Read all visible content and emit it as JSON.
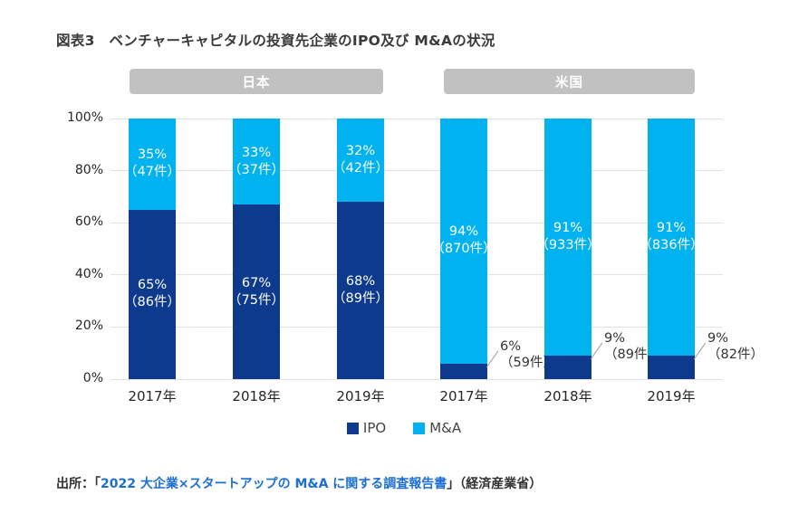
{
  "title": "図表3　ベンチャーキャピタルの投資先企業のIPO及び M&Aの状況",
  "groups": [
    {
      "label": "日本"
    },
    {
      "label": "米国"
    }
  ],
  "chart_data": {
    "type": "bar",
    "stacked": true,
    "categories": [
      "2017年",
      "2018年",
      "2019年",
      "2017年",
      "2018年",
      "2019年"
    ],
    "category_groups": [
      "日本",
      "日本",
      "日本",
      "米国",
      "米国",
      "米国"
    ],
    "series": [
      {
        "name": "IPO",
        "color": "#0d3a8d",
        "values": [
          65,
          67,
          68,
          6,
          9,
          9
        ],
        "counts": [
          86,
          75,
          89,
          59,
          89,
          82
        ],
        "labels": [
          [
            "65%",
            "（86件）"
          ],
          [
            "67%",
            "（75件）"
          ],
          [
            "68%",
            "（89件）"
          ],
          [
            "6%",
            "（59件）"
          ],
          [
            "9%",
            "（89件）"
          ],
          [
            "9%",
            "（82件）"
          ]
        ]
      },
      {
        "name": "M&A",
        "color": "#00b2f0",
        "values": [
          35,
          33,
          32,
          94,
          91,
          91
        ],
        "counts": [
          47,
          37,
          42,
          870,
          933,
          836
        ],
        "labels": [
          [
            "35%",
            "（47件）"
          ],
          [
            "33%",
            "（37件）"
          ],
          [
            "32%",
            "（42件）"
          ],
          [
            "94%",
            "（870件）"
          ],
          [
            "91%",
            "（933件）"
          ],
          [
            "91%",
            "（836件）"
          ]
        ]
      }
    ],
    "ylim": [
      0,
      100
    ],
    "yticks": [
      "0%",
      "20%",
      "40%",
      "60%",
      "80%",
      "100%"
    ],
    "grid": true,
    "legend": [
      "IPO",
      "M&A"
    ],
    "legend_position": "bottom",
    "colors": {
      "ipo": "#0d3a8d",
      "mna": "#00b2f0",
      "group_header_bg": "#c1c1c1",
      "gridline": "#e3e3e3",
      "label_inside": "#ffffff",
      "label_outside": "#333333"
    }
  },
  "source": {
    "prefix": "出所：「",
    "link_text": "2022 大企業×スタートアップの M&A に関する調査報告書",
    "suffix": "」（経済産業省）"
  }
}
